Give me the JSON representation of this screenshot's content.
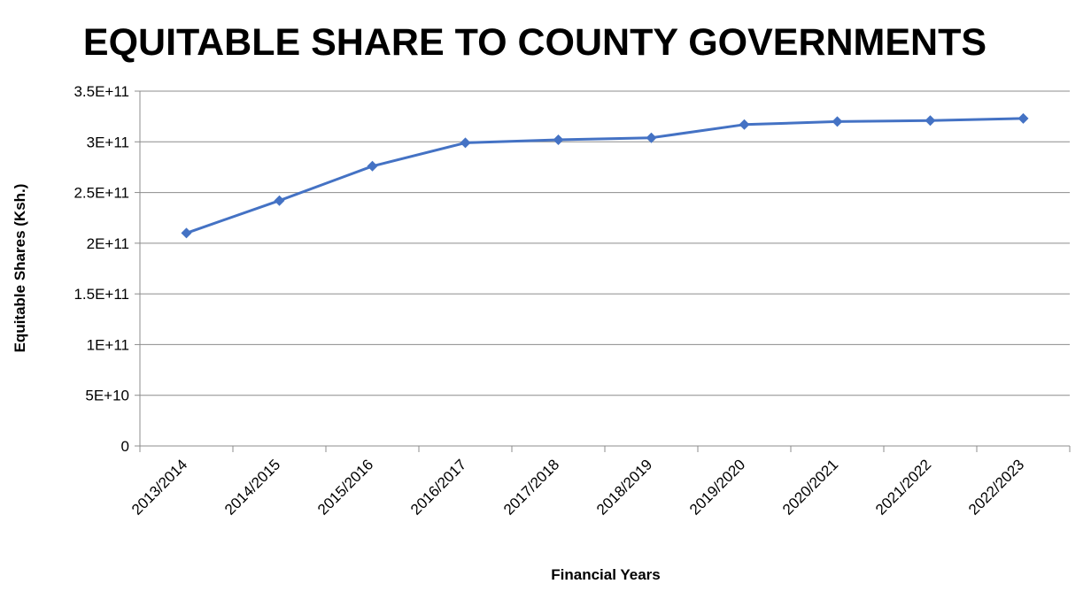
{
  "chart_data": {
    "type": "line",
    "title": "EQUITABLE SHARE TO COUNTY GOVERNMENTS",
    "xlabel": "Financial Years",
    "ylabel": "Equitable Shares (Ksh.)",
    "categories": [
      "2013/2014",
      "2014/2015",
      "2015/2016",
      "2016/2017",
      "2017/2018",
      "2018/2019",
      "2019/2020",
      "2020/2021",
      "2021/2022",
      "2022/2023"
    ],
    "series": [
      {
        "values": [
          210000000000,
          242000000000,
          276000000000,
          299000000000,
          302000000000,
          304000000000,
          317000000000,
          320000000000,
          321000000000,
          323000000000
        ],
        "color": "#4472C4",
        "marker": "diamond"
      }
    ],
    "ylim": [
      0,
      350000000000
    ],
    "yticks": [
      0,
      50000000000,
      100000000000,
      150000000000,
      200000000000,
      250000000000,
      300000000000,
      350000000000
    ],
    "ytick_labels": [
      "0",
      "5E+10",
      "1E+11",
      "1.5E+11",
      "2E+11",
      "2.5E+11",
      "3E+11",
      "3.5E+11"
    ],
    "grid": true,
    "legend": false
  }
}
